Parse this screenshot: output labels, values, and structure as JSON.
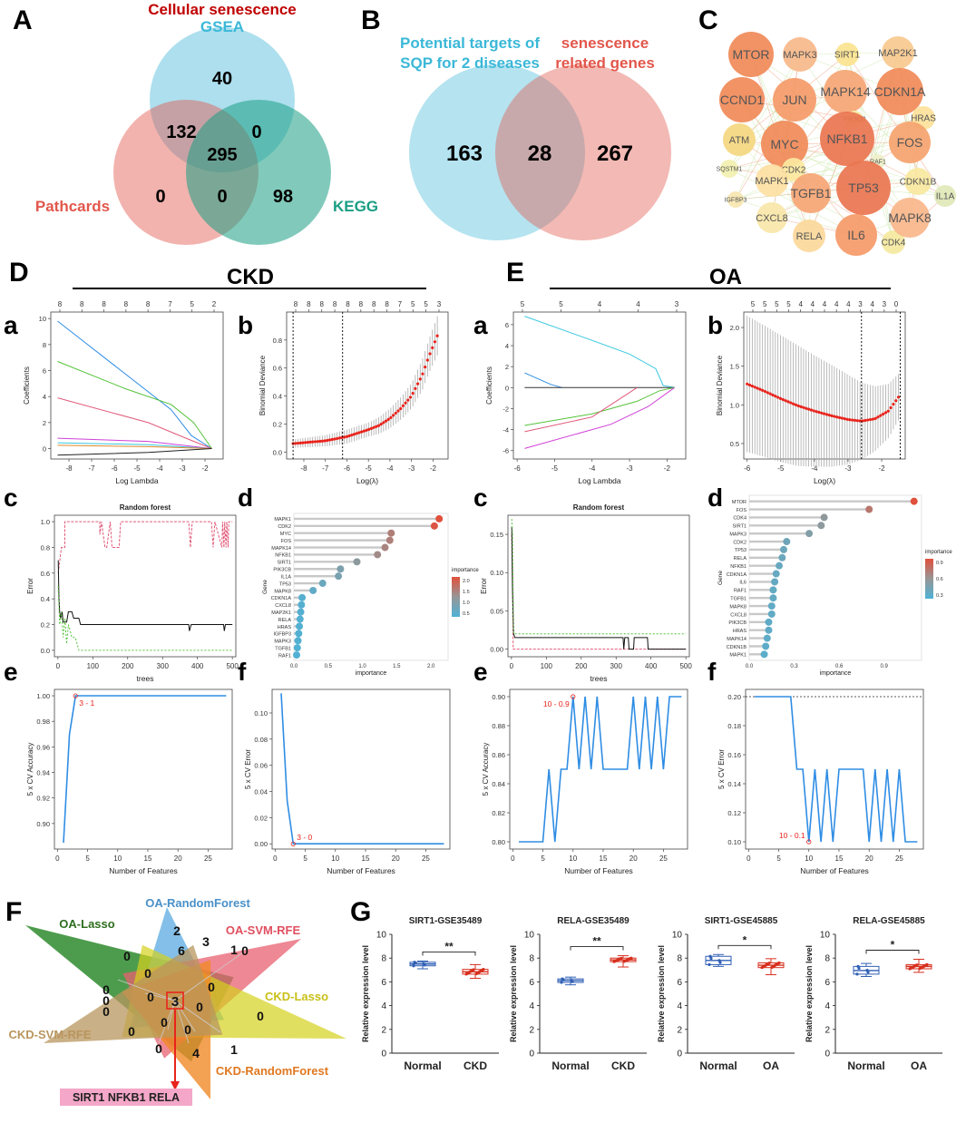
{
  "panel_letters": {
    "A": "A",
    "B": "B",
    "C": "C",
    "D": "D",
    "E": "E",
    "F": "F",
    "G": "G"
  },
  "sub_letters": {
    "a": "a",
    "b": "b",
    "c": "c",
    "d": "d",
    "e": "e",
    "f": "f"
  },
  "section_titles": {
    "ckd": "CKD",
    "oa": "OA"
  },
  "colors": {
    "red_title": "#c00000",
    "gsea": "#5bc0de",
    "pathcards": "#e2574c",
    "kegg": "#1a9e84",
    "loss_red": "#e8231c",
    "cv_blue": "#2f8de4"
  },
  "chart_data": [
    {
      "id": "A",
      "type": "venn",
      "title": "Cellular senescence",
      "sets": [
        "GSEA",
        "Pathcards",
        "KEGG"
      ],
      "regions": {
        "gsea_only": "40",
        "gsea_pathcards": "132",
        "gsea_kegg": "0",
        "all": "295",
        "pathcards_only": "0",
        "pathcards_kegg": "0",
        "kegg_only": "98"
      }
    },
    {
      "id": "B",
      "type": "venn",
      "sets": [
        {
          "line1": "Potential targets of",
          "line2": "SQP for 2 diseases"
        },
        {
          "line1": "senescence",
          "line2": "related genes"
        }
      ],
      "regions": {
        "left": "163",
        "both": "28",
        "right": "267"
      }
    },
    {
      "id": "C",
      "type": "network",
      "nodes": [
        "MTOR",
        "MAPK3",
        "SIRT1",
        "MAP2K1",
        "CCND1",
        "JUN",
        "MAPK14",
        "CDKN1A",
        "PIK3CB",
        "HRAS",
        "ATM",
        "MYC",
        "NFKB1",
        "FOS",
        "RAF1",
        "SQSTM1",
        "CDK2",
        "CDKN1B",
        "MAPK1",
        "IGFBP3",
        "TGFB1",
        "TP53",
        "IL1A",
        "CXCL8",
        "RELA",
        "IL6",
        "CDK4",
        "MAPK8"
      ]
    },
    {
      "id": "Da",
      "type": "line",
      "xlabel": "Log Lambda",
      "ylabel": "Coefficients",
      "xlim": [
        -8.8,
        -1.2
      ],
      "ylim": [
        -0.8,
        10.5
      ],
      "xticks": [
        "-8",
        "-7",
        "-6",
        "-5",
        "-4",
        "-3",
        "-2"
      ],
      "yticks": [
        "0",
        "2",
        "4",
        "6",
        "8",
        "10"
      ],
      "top_ticks": [
        "8",
        "8",
        "8",
        "8",
        "8",
        "7",
        "5",
        "2"
      ],
      "series": [
        {
          "color": "#2f8de4",
          "x": [
            -8.5,
            -3.5,
            -2.6,
            -1.7
          ],
          "y": [
            9.8,
            3.0,
            1.0,
            0
          ]
        },
        {
          "color": "#55c23a",
          "x": [
            -8.5,
            -5.5,
            -3.5,
            -2.5,
            -1.7
          ],
          "y": [
            6.7,
            4.6,
            3.4,
            2.0,
            0
          ]
        },
        {
          "color": "#e15a7a",
          "x": [
            -8.5,
            -4.5,
            -2.7,
            -1.7
          ],
          "y": [
            3.9,
            2.0,
            0.7,
            0
          ]
        },
        {
          "color": "#d040d8",
          "x": [
            -8.5,
            -4.5,
            -1.7
          ],
          "y": [
            0.8,
            0.55,
            0
          ]
        },
        {
          "color": "#3cc8e0",
          "x": [
            -8.5,
            -4.5,
            -1.7
          ],
          "y": [
            0.45,
            0.3,
            0
          ]
        },
        {
          "color": "#e08a2a",
          "x": [
            -8.5,
            -4.5,
            -1.7
          ],
          "y": [
            0.25,
            0.15,
            0
          ]
        },
        {
          "color": "#222222",
          "x": [
            -8.5,
            -4.5,
            -1.7
          ],
          "y": [
            -0.5,
            -0.3,
            0
          ]
        }
      ]
    },
    {
      "id": "Db",
      "type": "errorbar",
      "xlabel": "Log(λ)",
      "ylabel": "Binomial Deviance",
      "xlim": [
        -8.8,
        -1.3
      ],
      "ylim": [
        -0.05,
        1.0
      ],
      "xticks": [
        "-8",
        "-7",
        "-6",
        "-5",
        "-4",
        "-3",
        "-2"
      ],
      "yticks": [
        "0.0",
        "0.2",
        "0.4",
        "0.6",
        "0.8"
      ],
      "top_ticks": [
        "8",
        "8",
        "8",
        "8",
        "8",
        "8",
        "8",
        "8",
        "7",
        "5",
        "5",
        "3"
      ],
      "vlines": [
        -8.5,
        -6.2
      ],
      "curve": {
        "x": [
          -8.5,
          -7,
          -6,
          -5,
          -4.5,
          -4,
          -3.5,
          -3,
          -2.5,
          -2.2,
          -1.8
        ],
        "y": [
          0.06,
          0.08,
          0.11,
          0.16,
          0.19,
          0.24,
          0.31,
          0.4,
          0.55,
          0.68,
          0.83
        ],
        "err": [
          0.03,
          0.04,
          0.05,
          0.05,
          0.06,
          0.07,
          0.08,
          0.09,
          0.11,
          0.12,
          0.14
        ]
      }
    },
    {
      "id": "Dc",
      "type": "line",
      "title": "Random forest",
      "xlabel": "trees",
      "ylabel": "Error",
      "xlim": [
        -10,
        510
      ],
      "ylim": [
        -0.05,
        1.05
      ],
      "xticks": [
        "0",
        "100",
        "200",
        "300",
        "400",
        "500"
      ],
      "yticks": [
        "0.0",
        "0.2",
        "0.4",
        "0.6",
        "0.8",
        "1.0"
      ]
    },
    {
      "id": "Dd",
      "type": "lollipop",
      "xlabel": "importance",
      "ylabel": "Gene",
      "legend_title": "importance",
      "legend_ticks": [
        "2.0",
        "1.5",
        "1.0",
        "0.5"
      ],
      "xlim": [
        0,
        2.25
      ],
      "xticks": [
        "0.0",
        "0.5",
        "1.0",
        "1.5",
        "2.0"
      ],
      "genes": [
        "MAPK1",
        "CDK2",
        "MYC",
        "FOS",
        "MAPK14",
        "NFKB1",
        "SIRT1",
        "PIK3CB",
        "IL1A",
        "TP53",
        "MAPK8",
        "CDKN1A",
        "CXCL8",
        "MAP2K1",
        "RELA",
        "HRAS",
        "IGFBP3",
        "MAPK3",
        "TGFB1",
        "RAF1"
      ],
      "values": [
        2.12,
        2.05,
        1.42,
        1.4,
        1.33,
        1.22,
        0.92,
        0.68,
        0.65,
        0.42,
        0.28,
        0.12,
        0.11,
        0.1,
        0.09,
        0.08,
        0.07,
        0.06,
        0.05,
        0.04
      ]
    },
    {
      "id": "De",
      "type": "line",
      "xlabel": "Number of Features",
      "ylabel": "5 x CV Accuracy",
      "xlim": [
        -0.5,
        29
      ],
      "ylim": [
        0.88,
        1.005
      ],
      "xticks": [
        "0",
        "5",
        "10",
        "15",
        "20",
        "25"
      ],
      "yticks": [
        "0.90",
        "0.92",
        "0.94",
        "0.96",
        "0.98",
        "1.00"
      ],
      "x": [
        1,
        2,
        3,
        28
      ],
      "y": [
        0.885,
        0.97,
        1.0,
        1.0
      ],
      "annotation": {
        "x": 3,
        "y": 1.0,
        "label": "3 - 1"
      }
    },
    {
      "id": "Df",
      "type": "line",
      "xlabel": "Number of Features",
      "ylabel": "5 x CV Error",
      "xlim": [
        -0.5,
        29
      ],
      "ylim": [
        -0.004,
        0.118
      ],
      "xticks": [
        "0",
        "5",
        "10",
        "15",
        "20",
        "25"
      ],
      "yticks": [
        "0.00",
        "0.02",
        "0.04",
        "0.06",
        "0.08",
        "0.10"
      ],
      "x": [
        1,
        2,
        3,
        28
      ],
      "y": [
        0.115,
        0.033,
        0,
        0
      ],
      "annotation": {
        "x": 3,
        "y": 0,
        "label": "3 - 0"
      }
    },
    {
      "id": "Ea",
      "type": "line",
      "xlabel": "Log Lambda",
      "ylabel": "Coefficients",
      "xlim": [
        -6.1,
        -1.5
      ],
      "ylim": [
        -6.8,
        7.2
      ],
      "xticks": [
        "-6",
        "-5",
        "-4",
        "-3",
        "-2"
      ],
      "yticks": [
        "-6",
        "-4",
        "-2",
        "0",
        "2",
        "4",
        "6"
      ],
      "top_ticks": [
        "5",
        "5",
        "4",
        "4",
        "3"
      ],
      "series": [
        {
          "color": "#3cc8e0",
          "x": [
            -5.8,
            -4,
            -3,
            -2.3,
            -2.1,
            -1.8
          ],
          "y": [
            6.8,
            4.5,
            3.2,
            1.8,
            0.2,
            0
          ]
        },
        {
          "color": "#2f8de4",
          "x": [
            -5.8,
            -5.1,
            -4.8
          ],
          "y": [
            1.4,
            0.3,
            0
          ]
        },
        {
          "color": "#333333",
          "x": [
            -5.8,
            -1.8
          ],
          "y": [
            0,
            0
          ]
        },
        {
          "color": "#55c23a",
          "x": [
            -5.8,
            -4,
            -2.8,
            -2.2,
            -1.8
          ],
          "y": [
            -3.6,
            -2.5,
            -1.3,
            -0.3,
            0
          ]
        },
        {
          "color": "#e15a7a",
          "x": [
            -5.8,
            -4,
            -2.8
          ],
          "y": [
            -4.2,
            -2.8,
            0
          ]
        },
        {
          "color": "#d040d8",
          "x": [
            -5.8,
            -3.5,
            -2.5,
            -1.8
          ],
          "y": [
            -5.8,
            -3.5,
            -1.8,
            0
          ]
        }
      ]
    },
    {
      "id": "Eb",
      "type": "errorbar",
      "xlabel": "Log(λ)",
      "ylabel": "Binomial Deviance",
      "xlim": [
        -6.1,
        -1.3
      ],
      "ylim": [
        0.3,
        2.2
      ],
      "xticks": [
        "-6",
        "-5",
        "-4",
        "-3",
        "-2"
      ],
      "yticks": [
        "0.5",
        "1.0",
        "1.5",
        "2.0"
      ],
      "top_ticks": [
        "5",
        "5",
        "5",
        "5",
        "4",
        "4",
        "4",
        "4",
        "4",
        "3",
        "4",
        "3",
        "0"
      ],
      "vlines": [
        -2.6,
        -1.45
      ],
      "curve": {
        "x": [
          -6,
          -5.5,
          -5,
          -4.5,
          -4,
          -3.5,
          -3,
          -2.6,
          -2.2,
          -1.8,
          -1.5
        ],
        "y": [
          1.27,
          1.18,
          1.08,
          0.99,
          0.92,
          0.86,
          0.81,
          0.79,
          0.82,
          0.92,
          1.1
        ],
        "err": [
          0.88,
          0.85,
          0.82,
          0.78,
          0.72,
          0.66,
          0.58,
          0.5,
          0.42,
          0.35,
          0.3
        ]
      }
    },
    {
      "id": "Ec",
      "type": "line",
      "title": "Random forest",
      "xlabel": "trees",
      "ylabel": "Error",
      "xlim": [
        -10,
        510
      ],
      "ylim": [
        -0.01,
        0.175
      ],
      "xticks": [
        "0",
        "100",
        "200",
        "300",
        "400",
        "500"
      ],
      "yticks": [
        "0.00",
        "0.05",
        "0.10",
        "0.15"
      ]
    },
    {
      "id": "Ed",
      "type": "lollipop",
      "xlabel": "importance",
      "ylabel": "Gene",
      "legend_title": "importance",
      "legend_ticks": [
        "0.9",
        "0.6",
        "0.3"
      ],
      "xlim": [
        0,
        1.15
      ],
      "xticks": [
        "0.0",
        "0.3",
        "0.6",
        "0.9"
      ],
      "genes": [
        "MTOR",
        "FOS",
        "CDK4",
        "SIRT1",
        "MAPK3",
        "CDK2",
        "TP53",
        "RELA",
        "NFKB1",
        "CDKN1A",
        "IL6",
        "RAF1",
        "TGFB1",
        "MAPK8",
        "CXCL8",
        "PIK3CB",
        "HRAS",
        "MAPK14",
        "CDKN1B",
        "MAPK1"
      ],
      "values": [
        1.1,
        0.8,
        0.5,
        0.48,
        0.4,
        0.25,
        0.23,
        0.22,
        0.2,
        0.18,
        0.17,
        0.16,
        0.16,
        0.15,
        0.15,
        0.13,
        0.13,
        0.12,
        0.11,
        0.1
      ]
    },
    {
      "id": "Ee",
      "type": "line",
      "xlabel": "Number of Features",
      "ylabel": "5 x CV Accuracy",
      "xlim": [
        -0.5,
        29
      ],
      "ylim": [
        0.795,
        0.905
      ],
      "xticks": [
        "0",
        "5",
        "10",
        "15",
        "20",
        "25"
      ],
      "yticks": [
        "0.80",
        "0.82",
        "0.84",
        "0.86",
        "0.88",
        "0.90"
      ],
      "x": [
        1,
        5,
        6,
        7,
        8,
        9,
        10,
        11,
        12,
        13,
        14,
        15,
        16,
        17,
        18,
        19,
        20,
        21,
        22,
        23,
        24,
        25,
        26,
        27,
        28
      ],
      "y": [
        0.8,
        0.8,
        0.85,
        0.8,
        0.85,
        0.85,
        0.9,
        0.85,
        0.9,
        0.85,
        0.9,
        0.85,
        0.85,
        0.85,
        0.85,
        0.85,
        0.9,
        0.85,
        0.9,
        0.85,
        0.9,
        0.85,
        0.9,
        0.9,
        0.9
      ],
      "annotation": {
        "x": 10,
        "y": 0.9,
        "label": "10 - 0.9"
      }
    },
    {
      "id": "Ef",
      "type": "line",
      "xlabel": "Number of Features",
      "ylabel": "5 x CV Error",
      "xlim": [
        -0.5,
        29
      ],
      "ylim": [
        0.095,
        0.205
      ],
      "xticks": [
        "0",
        "5",
        "10",
        "15",
        "20",
        "25"
      ],
      "yticks": [
        "0.10",
        "0.12",
        "0.14",
        "0.16",
        "0.18",
        "0.20"
      ],
      "x": [
        1,
        5,
        6,
        7,
        8,
        9,
        10,
        11,
        12,
        13,
        14,
        15,
        16,
        17,
        18,
        19,
        20,
        21,
        22,
        23,
        24,
        25,
        26,
        27,
        28
      ],
      "y": [
        0.2,
        0.2,
        0.2,
        0.2,
        0.15,
        0.15,
        0.1,
        0.15,
        0.1,
        0.15,
        0.1,
        0.15,
        0.15,
        0.15,
        0.15,
        0.15,
        0.1,
        0.15,
        0.1,
        0.15,
        0.1,
        0.15,
        0.1,
        0.1,
        0.1
      ],
      "hline": 0.2,
      "annotation": {
        "x": 10,
        "y": 0.1,
        "label": "10 - 0.1"
      }
    },
    {
      "id": "F",
      "type": "star_venn",
      "sets": [
        "OA-Lasso",
        "OA-RandomForest",
        "OA-SVM-RFE",
        "CKD-Lasso",
        "CKD-RandomForest",
        "CKD-SVM-RFE"
      ],
      "numbers": [
        "2",
        "3",
        "1",
        "0",
        "6",
        "0",
        "0",
        "0",
        "0",
        "0",
        "0",
        "0",
        "0",
        "0",
        "0",
        "0",
        "0",
        "0",
        "4",
        "1"
      ],
      "center": "3",
      "result": "SIRT1   NFKB1   RELA"
    },
    {
      "id": "G",
      "type": "boxplot",
      "ylabel": "Relative expression level",
      "ylim": [
        0,
        10
      ],
      "yticks": [
        "0",
        "2",
        "4",
        "6",
        "8",
        "10"
      ],
      "panels": [
        {
          "title": "SIRT1-GSE35489",
          "groups": [
            "Normal",
            "CKD"
          ],
          "sig": "**",
          "normal": {
            "min": 7.1,
            "q1": 7.35,
            "med": 7.5,
            "q3": 7.65,
            "max": 7.75
          },
          "disease": {
            "min": 6.3,
            "q1": 6.65,
            "med": 6.85,
            "q3": 7.05,
            "max": 7.45
          }
        },
        {
          "title": "RELA-GSE35489",
          "groups": [
            "Normal",
            "CKD"
          ],
          "sig": "**",
          "normal": {
            "min": 5.75,
            "q1": 5.95,
            "med": 6.1,
            "q3": 6.25,
            "max": 6.4
          },
          "disease": {
            "min": 7.25,
            "q1": 7.7,
            "med": 7.85,
            "q3": 8.0,
            "max": 8.2
          }
        },
        {
          "title": "SIRT1-GSE45885",
          "groups": [
            "Normal",
            "OA"
          ],
          "sig": "*",
          "normal": {
            "min": 7.3,
            "q1": 7.45,
            "med": 7.8,
            "q3": 8.15,
            "max": 8.3
          },
          "disease": {
            "min": 6.6,
            "q1": 7.2,
            "med": 7.4,
            "q3": 7.6,
            "max": 7.95
          }
        },
        {
          "title": "RELA-GSE45885",
          "groups": [
            "Normal",
            "OA"
          ],
          "sig": "*",
          "normal": {
            "min": 6.45,
            "q1": 6.65,
            "med": 6.95,
            "q3": 7.3,
            "max": 7.55
          },
          "disease": {
            "min": 6.8,
            "q1": 7.1,
            "med": 7.3,
            "q3": 7.45,
            "max": 7.9
          }
        }
      ]
    }
  ]
}
